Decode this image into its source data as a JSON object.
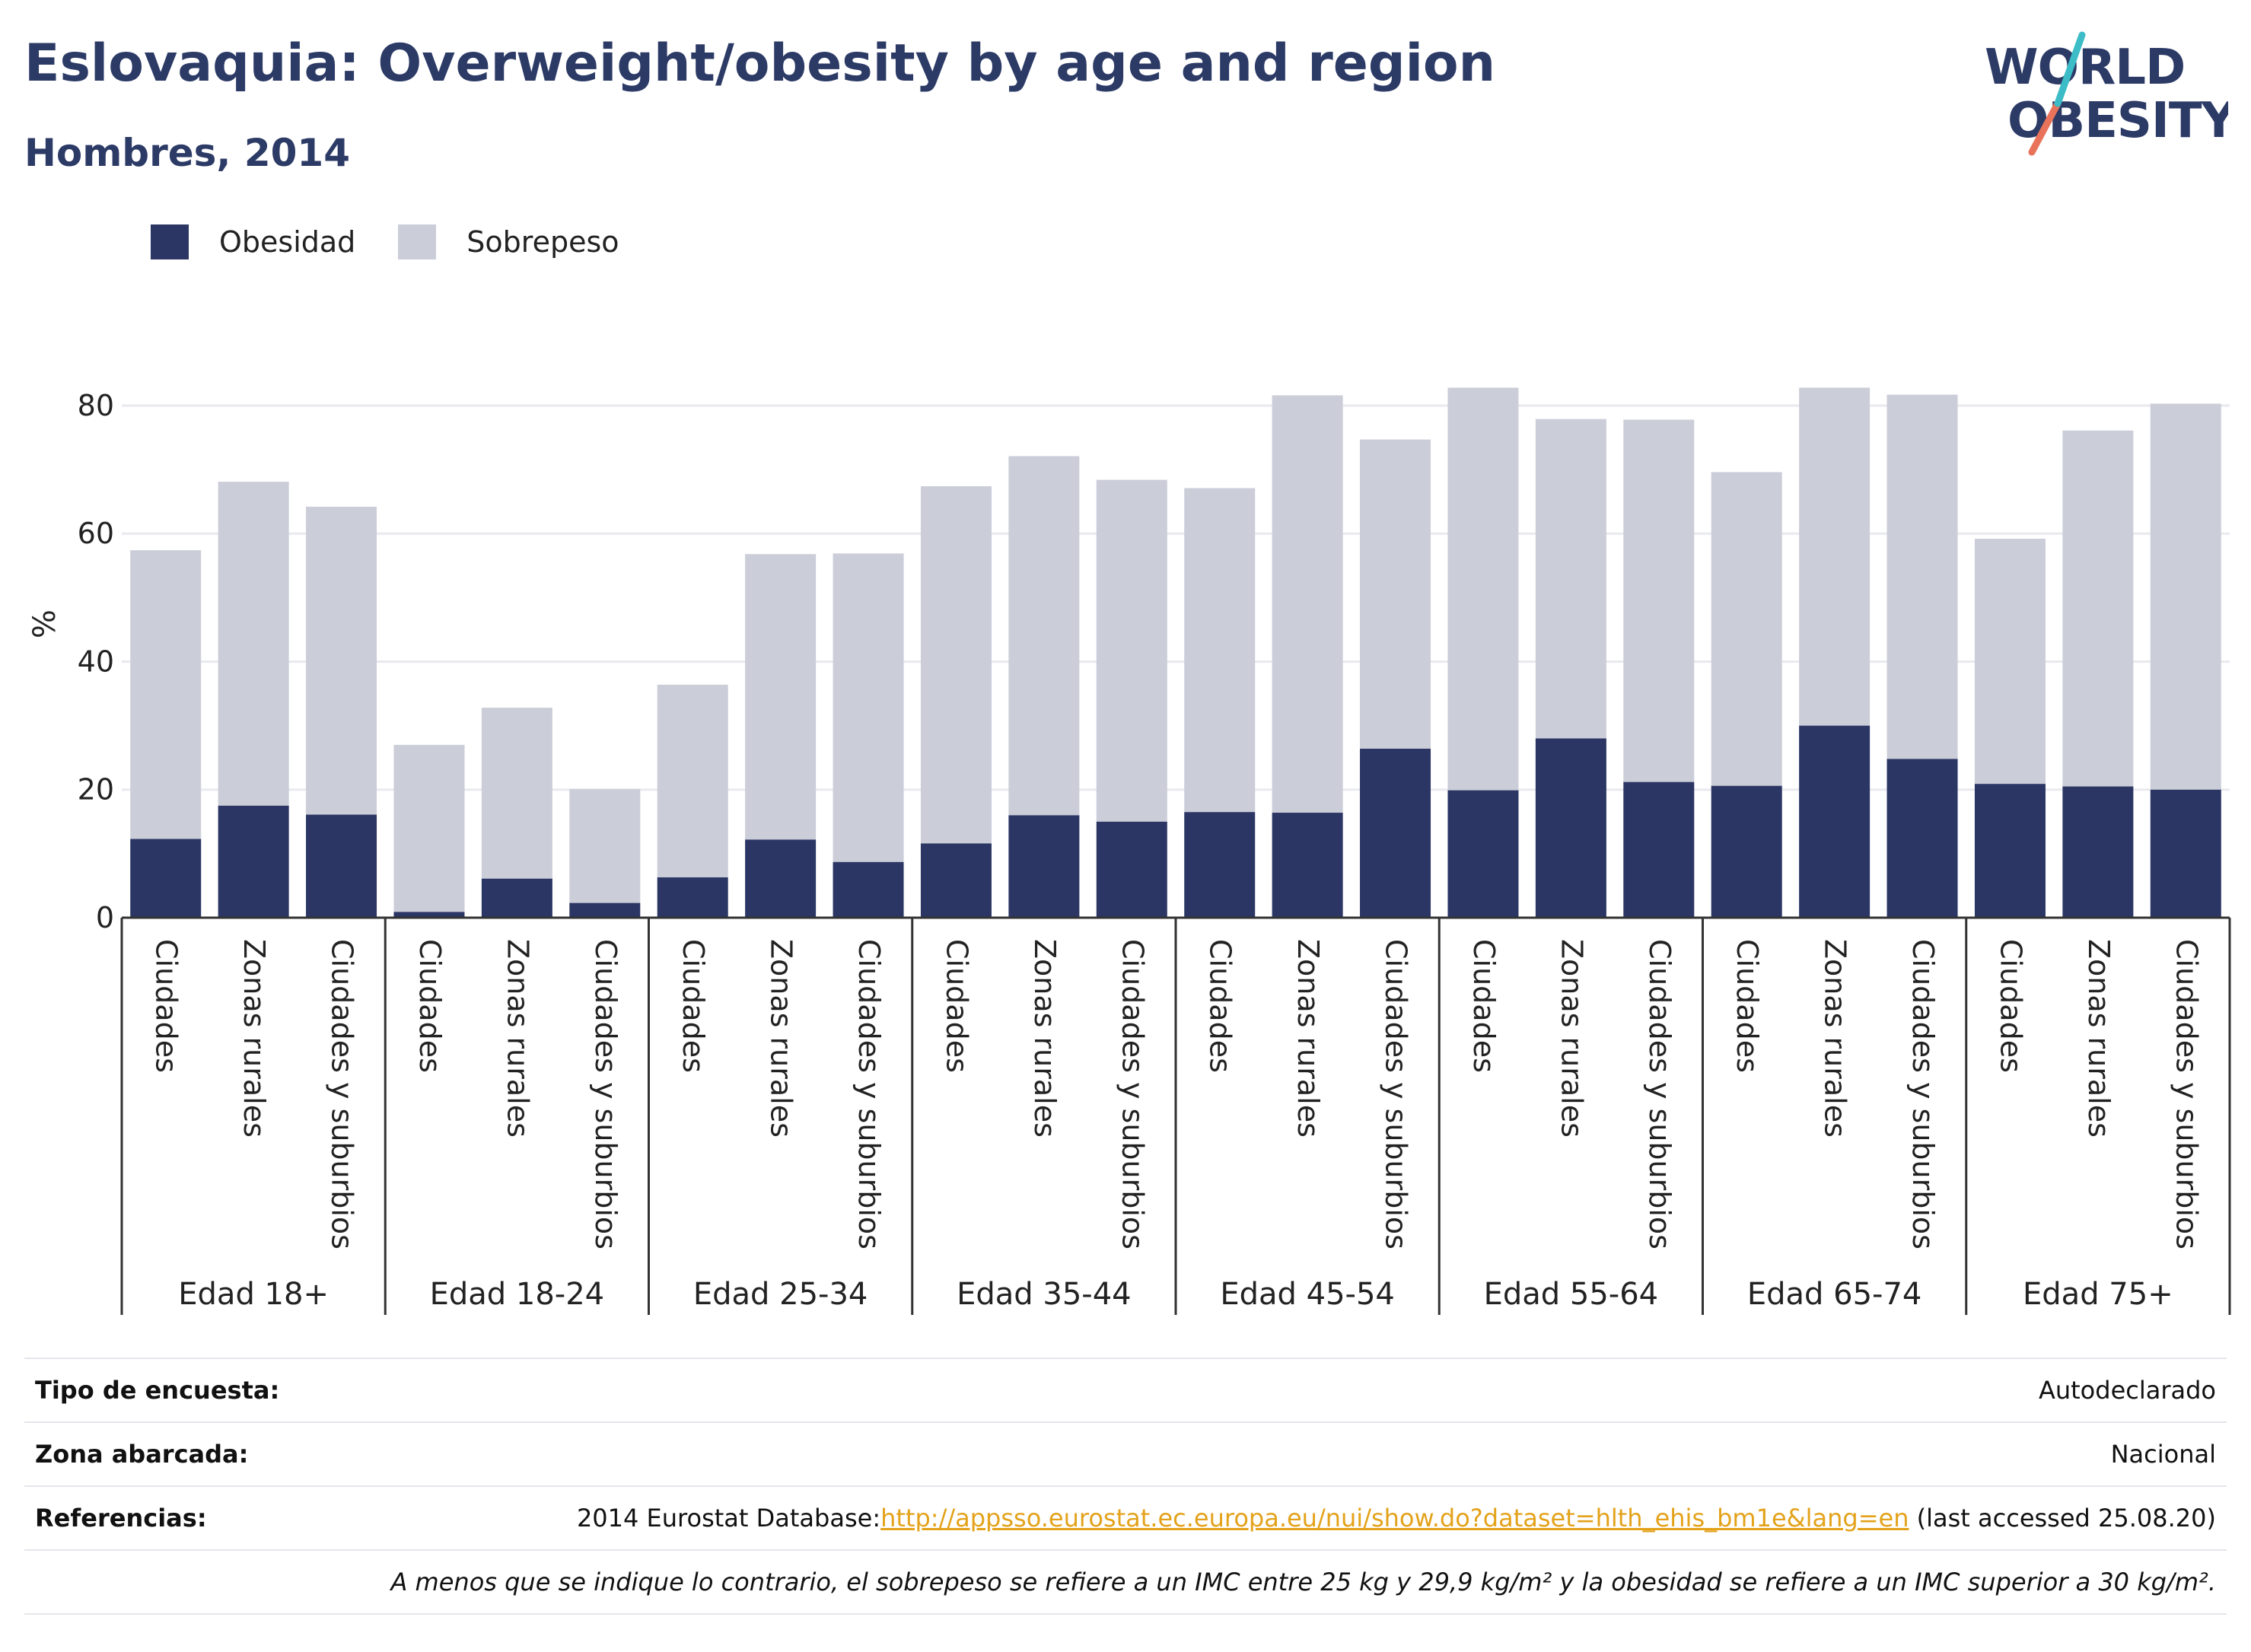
{
  "header": {
    "title": "Eslovaquia: Overweight/obesity by age and region",
    "subtitle": "Hombres, 2014"
  },
  "logo": {
    "line1": "WORLD",
    "line2": "OBESITY"
  },
  "colors": {
    "obesity": "#2b3664",
    "overweight": "#cbcdd8",
    "grid": "#e9eaef",
    "axis": "#333333"
  },
  "chart_data": {
    "type": "bar",
    "stacked": true,
    "ylabel": "%",
    "ylim": [
      0,
      90
    ],
    "yticks": [
      0,
      20,
      40,
      60,
      80
    ],
    "grid": true,
    "legend_position": "top-left",
    "legend": [
      "Obesidad",
      "Sobrepeso"
    ],
    "groups": [
      "Edad 18+",
      "Edad 18-24",
      "Edad 25-34",
      "Edad 35-44",
      "Edad 45-54",
      "Edad 55-64",
      "Edad 65-74",
      "Edad 75+"
    ],
    "subcategories": [
      "Ciudades",
      "Zonas rurales",
      "Ciudades y suburbios"
    ],
    "series": [
      {
        "name": "Obesidad",
        "values": [
          12.3,
          17.5,
          16.1,
          0.9,
          6.1,
          2.3,
          6.3,
          12.2,
          8.7,
          11.6,
          16.0,
          15.0,
          16.5,
          16.4,
          26.4,
          19.9,
          28.0,
          21.2,
          20.6,
          30.0,
          24.8,
          20.9,
          20.5,
          20.0
        ]
      },
      {
        "name": "Sobrepeso",
        "values": [
          45.1,
          50.6,
          48.1,
          26.1,
          26.7,
          17.8,
          30.1,
          44.6,
          48.2,
          55.8,
          56.1,
          53.4,
          50.6,
          65.2,
          48.3,
          62.9,
          49.9,
          56.6,
          49.0,
          52.8,
          56.9,
          38.3,
          55.6,
          60.3
        ]
      }
    ]
  },
  "info": {
    "survey_label": "Tipo de encuesta:",
    "survey_value": "Autodeclarado",
    "area_label": "Zona abarcada:",
    "area_value": "Nacional",
    "refs_label": "Referencias:",
    "refs_prefix": "2014 Eurostat Database:",
    "refs_link": "http://appsso.eurostat.ec.europa.eu/nui/show.do?dataset=hlth_ehis_bm1e&lang=en",
    "refs_suffix": " (last accessed 25.08.20)",
    "note": "A menos que se indique lo contrario, el sobrepeso se refiere a un IMC entre 25 kg y 29,9 kg/m² y la obesidad se refiere a un IMC superior a 30 kg/m²."
  }
}
